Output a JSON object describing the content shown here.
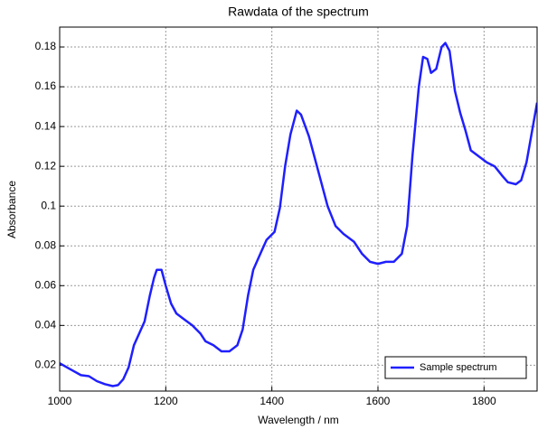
{
  "chart_data": {
    "type": "line",
    "title": "Rawdata of the spectrum",
    "x_label": "Wavelength / nm",
    "y_label": "Absorbance",
    "x": [
      1000,
      1020,
      1040,
      1055,
      1070,
      1085,
      1100,
      1110,
      1120,
      1130,
      1140,
      1150,
      1160,
      1170,
      1178,
      1183,
      1192,
      1200,
      1210,
      1220,
      1235,
      1250,
      1265,
      1275,
      1290,
      1305,
      1320,
      1335,
      1345,
      1355,
      1365,
      1380,
      1390,
      1405,
      1415,
      1425,
      1435,
      1447,
      1455,
      1470,
      1490,
      1505,
      1520,
      1535,
      1555,
      1570,
      1585,
      1600,
      1615,
      1630,
      1645,
      1655,
      1665,
      1677,
      1685,
      1693,
      1700,
      1710,
      1720,
      1727,
      1735,
      1745,
      1755,
      1765,
      1775,
      1790,
      1805,
      1820,
      1835,
      1845,
      1860,
      1870,
      1880,
      1900
    ],
    "series": [
      {
        "name": "Sample spectrum",
        "color": "#1f1fff",
        "values": [
          0.021,
          0.018,
          0.015,
          0.0145,
          0.012,
          0.0105,
          0.0095,
          0.01,
          0.013,
          0.019,
          0.03,
          0.036,
          0.042,
          0.055,
          0.064,
          0.068,
          0.068,
          0.06,
          0.051,
          0.046,
          0.043,
          0.04,
          0.036,
          0.032,
          0.03,
          0.027,
          0.027,
          0.03,
          0.038,
          0.055,
          0.068,
          0.077,
          0.083,
          0.087,
          0.099,
          0.12,
          0.136,
          0.148,
          0.146,
          0.135,
          0.115,
          0.1,
          0.09,
          0.086,
          0.082,
          0.076,
          0.072,
          0.071,
          0.072,
          0.072,
          0.076,
          0.09,
          0.125,
          0.16,
          0.175,
          0.174,
          0.167,
          0.169,
          0.18,
          0.182,
          0.178,
          0.158,
          0.147,
          0.138,
          0.128,
          0.125,
          0.122,
          0.12,
          0.115,
          0.112,
          0.111,
          0.113,
          0.122,
          0.152
        ]
      }
    ],
    "xlim": [
      1000,
      1900
    ],
    "xticks": [
      1000,
      1200,
      1400,
      1600,
      1800
    ],
    "ylim": [
      0.007,
      0.19
    ],
    "yticks": [
      0.02,
      0.04,
      0.06,
      0.08,
      0.1,
      0.12,
      0.14,
      0.16,
      0.18
    ],
    "grid": true,
    "legend": "lower right"
  }
}
